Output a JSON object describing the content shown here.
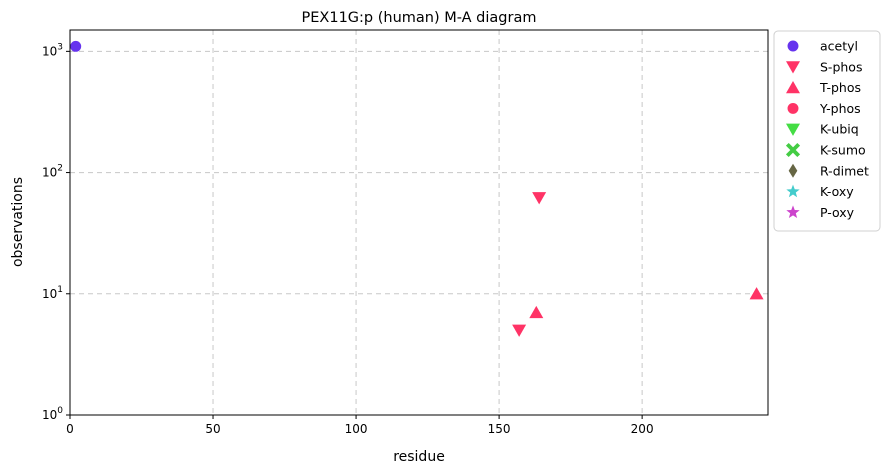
{
  "chart_data": {
    "type": "scatter",
    "title": "PEX11G:p (human) M-A diagram",
    "xlabel": "residue",
    "ylabel": "observations",
    "xlim": [
      0,
      244
    ],
    "ylim": [
      1,
      1500
    ],
    "yscale": "log",
    "grid": true,
    "legend_placement": "outside-right-top",
    "x_ticks": [
      {
        "value": 0,
        "label": "0"
      },
      {
        "value": 50,
        "label": "50"
      },
      {
        "value": 100,
        "label": "100"
      },
      {
        "value": 150,
        "label": "150"
      },
      {
        "value": 200,
        "label": "200"
      }
    ],
    "y_ticks": [
      {
        "value": 1,
        "base": "10",
        "exp": "0"
      },
      {
        "value": 10,
        "base": "10",
        "exp": "1"
      },
      {
        "value": 100,
        "base": "10",
        "exp": "2"
      },
      {
        "value": 1000,
        "base": "10",
        "exp": "3"
      }
    ],
    "series": [
      {
        "name": "acetyl",
        "marker": "circle",
        "color": "#6633ee",
        "points": [
          {
            "x": 2,
            "y": 1100
          }
        ]
      },
      {
        "name": "S-phos",
        "marker": "triangle-down",
        "color": "#ff3366",
        "points": [
          {
            "x": 164,
            "y": 62
          },
          {
            "x": 157,
            "y": 5
          }
        ]
      },
      {
        "name": "T-phos",
        "marker": "triangle-up",
        "color": "#ff3366",
        "points": [
          {
            "x": 163,
            "y": 7
          },
          {
            "x": 240,
            "y": 10
          }
        ]
      },
      {
        "name": "Y-phos",
        "marker": "circle",
        "color": "#ff3366",
        "points": []
      },
      {
        "name": "K-ubiq",
        "marker": "triangle-down",
        "color": "#44dd44",
        "points": []
      },
      {
        "name": "K-sumo",
        "marker": "x-thick",
        "color": "#44cc44",
        "points": []
      },
      {
        "name": "R-dimet",
        "marker": "diamond",
        "color": "#666644",
        "points": []
      },
      {
        "name": "K-oxy",
        "marker": "star",
        "color": "#44cccc",
        "points": []
      },
      {
        "name": "P-oxy",
        "marker": "star",
        "color": "#cc44cc",
        "points": []
      }
    ]
  }
}
